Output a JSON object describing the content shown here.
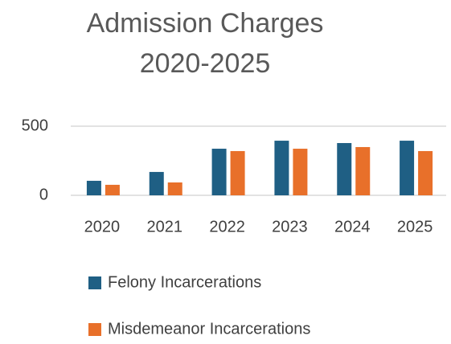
{
  "chart_data": {
    "type": "bar",
    "title": "Admission Charges 2020-2025",
    "categories": [
      "2020",
      "2021",
      "2022",
      "2023",
      "2024",
      "2025"
    ],
    "series": [
      {
        "name": "Felony Incarcerations",
        "color": "#1f5f84",
        "values": [
          105,
          169,
          337,
          395,
          378,
          395
        ]
      },
      {
        "name": "Misdemeanor Incarcerations",
        "color": "#e8702a",
        "values": [
          76,
          93,
          320,
          337,
          349,
          320
        ]
      }
    ],
    "ylim": [
      0,
      500
    ],
    "yticks": [
      0,
      500
    ],
    "grid": true,
    "legend": "bottom"
  }
}
